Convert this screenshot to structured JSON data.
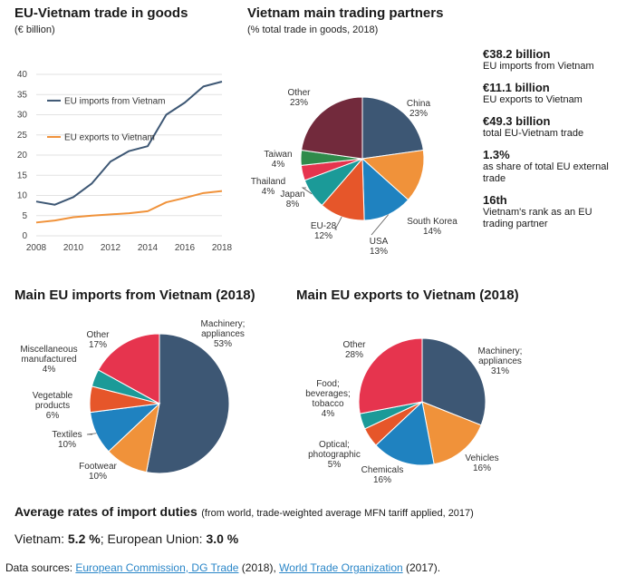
{
  "line_chart": {
    "title": "EU-Vietnam trade in goods",
    "subtitle": "(€ billion)"
  },
  "partners_chart": {
    "title": "Vietnam main trading partners",
    "subtitle": "(% total trade in goods, 2018)"
  },
  "stats": [
    {
      "value": "€38.2 billion",
      "label": "EU imports from Vietnam"
    },
    {
      "value": "€11.1 billion",
      "label": "EU exports to Vietnam"
    },
    {
      "value": "€49.3 billion",
      "label": "total EU-Vietnam trade"
    },
    {
      "value": "1.3%",
      "label": "as share of total EU external trade"
    },
    {
      "value": "16th",
      "label": "Vietnam's rank as an EU trading partner"
    }
  ],
  "imports_chart": {
    "title": "Main EU imports from Vietnam (2018)"
  },
  "exports_chart": {
    "title": "Main EU exports to Vietnam (2018)"
  },
  "duties": {
    "title": "Average rates of import duties",
    "note": "(from world, trade-weighted average MFN tariff applied, 2017)",
    "vietnam_label": "Vietnam: ",
    "vietnam_value": "5.2 %",
    "sep": "; ",
    "eu_label": "European Union: ",
    "eu_value": "3.0 %"
  },
  "sources": {
    "label": "Data sources: ",
    "link1": "European Commission, DG Trade",
    "year1": " (2018), ",
    "link2": "World Trade Organization",
    "year2": " (2017)."
  },
  "chart_data": [
    {
      "type": "line",
      "title": "EU-Vietnam trade in goods",
      "ylim": [
        0,
        40
      ],
      "yticks": [
        0,
        5,
        10,
        15,
        20,
        25,
        30,
        35,
        40
      ],
      "xticks": [
        2008,
        2010,
        2012,
        2014,
        2016,
        2018
      ],
      "x": [
        2008,
        2009,
        2010,
        2011,
        2012,
        2013,
        2014,
        2015,
        2016,
        2017,
        2018
      ],
      "series": [
        {
          "name": "EU imports from Vietnam",
          "color": "#3d5774",
          "values": [
            8.5,
            7.7,
            9.6,
            13.0,
            18.4,
            21.0,
            22.2,
            30.0,
            33.0,
            37.0,
            38.2
          ]
        },
        {
          "name": "EU exports to Vietnam",
          "color": "#f0923a",
          "values": [
            3.3,
            3.8,
            4.6,
            5.0,
            5.3,
            5.6,
            6.1,
            8.3,
            9.4,
            10.6,
            11.1
          ]
        }
      ],
      "grid": true,
      "legend": "top-left"
    },
    {
      "type": "pie",
      "title": "Vietnam main trading partners",
      "slices": [
        {
          "label": "China",
          "value": 23,
          "display": "23%",
          "color": "#3d5774"
        },
        {
          "label": "South Korea",
          "value": 14,
          "display": "14%",
          "color": "#f0923a"
        },
        {
          "label": "USA",
          "value": 13,
          "display": "13%",
          "color": "#1f82c0"
        },
        {
          "label": "EU-28",
          "value": 12,
          "display": "12%",
          "color": "#e6562a"
        },
        {
          "label": "Japan",
          "value": 8,
          "display": "8%",
          "color": "#1b9a98"
        },
        {
          "label": "Thailand",
          "value": 4,
          "display": "4%",
          "color": "#e6344e"
        },
        {
          "label": "Taiwan",
          "value": 4,
          "display": "4%",
          "color": "#2f8b4b"
        },
        {
          "label": "Other",
          "value": 23,
          "display": "23%",
          "color": "#722a3c"
        }
      ]
    },
    {
      "type": "pie",
      "title": "Main EU imports from Vietnam (2018)",
      "slices": [
        {
          "label": "Machinery; appliances",
          "value": 53,
          "display": "53%",
          "color": "#3d5774"
        },
        {
          "label": "Footwear",
          "value": 10,
          "display": "10%",
          "color": "#f0923a"
        },
        {
          "label": "Textiles",
          "value": 10,
          "display": "10%",
          "color": "#1f82c0"
        },
        {
          "label": "Vegetable products",
          "value": 6,
          "display": "6%",
          "color": "#e6562a"
        },
        {
          "label": "Miscellaneous manufactured",
          "value": 4,
          "display": "4%",
          "color": "#1b9a98"
        },
        {
          "label": "Other",
          "value": 17,
          "display": "17%",
          "color": "#e6344e"
        }
      ]
    },
    {
      "type": "pie",
      "title": "Main EU exports to Vietnam (2018)",
      "slices": [
        {
          "label": "Machinery; appliances",
          "value": 31,
          "display": "31%",
          "color": "#3d5774"
        },
        {
          "label": "Vehicles",
          "value": 16,
          "display": "16%",
          "color": "#f0923a"
        },
        {
          "label": "Chemicals",
          "value": 16,
          "display": "16%",
          "color": "#1f82c0"
        },
        {
          "label": "Optical; photographic",
          "value": 5,
          "display": "5%",
          "color": "#e6562a"
        },
        {
          "label": "Food; beverages; tobacco",
          "value": 4,
          "display": "4%",
          "color": "#1b9a98"
        },
        {
          "label": "Other",
          "value": 28,
          "display": "28%",
          "color": "#e6344e"
        }
      ]
    }
  ]
}
